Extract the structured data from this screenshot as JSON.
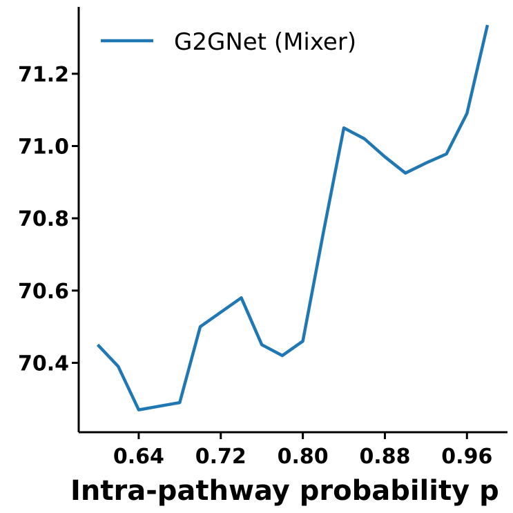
{
  "chart_data": {
    "type": "line",
    "xlabel": "Intra-pathway probability p",
    "ylabel": "",
    "xlim": [
      0.5815,
      0.9995
    ],
    "ylim": [
      70.208,
      71.385
    ],
    "x_ticks": [
      0.64,
      0.72,
      0.8,
      0.88,
      0.96
    ],
    "x_tick_labels": [
      "0.64",
      "0.72",
      "0.80",
      "0.88",
      "0.96"
    ],
    "y_ticks": [
      70.4,
      70.6,
      70.8,
      71.0,
      71.2
    ],
    "y_tick_labels": [
      "70.4",
      "70.6",
      "70.8",
      "71.0",
      "71.2"
    ],
    "grid": false,
    "legend_position": "top-left",
    "series": [
      {
        "name": "G2GNet (Mixer)",
        "color": "#1f77b4",
        "x": [
          0.6,
          0.62,
          0.64,
          0.66,
          0.68,
          0.7,
          0.72,
          0.74,
          0.76,
          0.78,
          0.8,
          0.82,
          0.84,
          0.86,
          0.88,
          0.9,
          0.92,
          0.94,
          0.96,
          0.98
        ],
        "y": [
          70.45,
          70.39,
          70.27,
          70.28,
          70.29,
          70.5,
          70.54,
          70.58,
          70.45,
          70.42,
          70.46,
          70.76,
          71.05,
          71.02,
          70.97,
          70.925,
          70.953,
          70.978,
          71.09,
          71.335
        ]
      }
    ]
  }
}
